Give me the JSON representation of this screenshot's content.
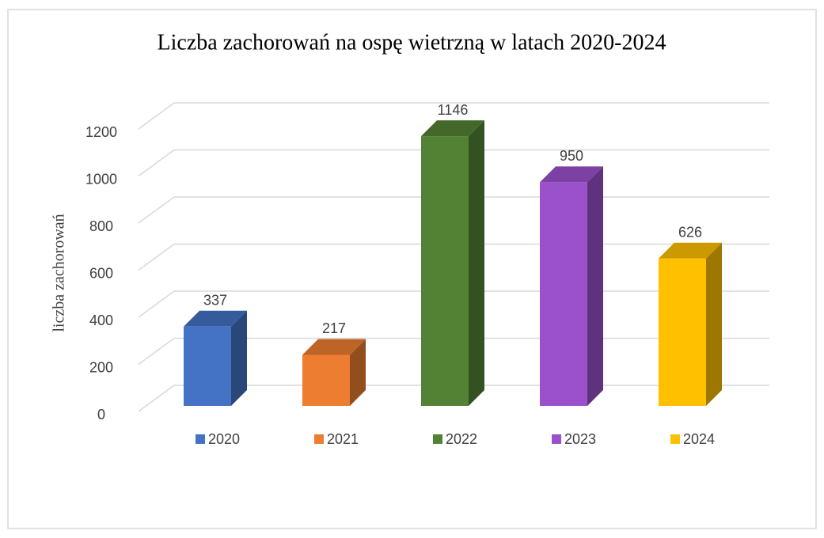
{
  "chart_data": {
    "type": "bar3d",
    "title": "Liczba zachorowań na ospę wietrzną w latach 2020-2024",
    "y_label": "liczba zachorowań",
    "series": [
      {
        "name": "2020",
        "color": "#4472c4",
        "values": [
          337
        ]
      },
      {
        "name": "2021",
        "color": "#ed7d31",
        "values": [
          217
        ]
      },
      {
        "name": "2022",
        "color": "#548235",
        "values": [
          1146
        ]
      },
      {
        "name": "2023",
        "color": "#9b51cc",
        "values": [
          950
        ]
      },
      {
        "name": "2024",
        "color": "#ffc000",
        "values": [
          626
        ]
      }
    ],
    "ylim": [
      0,
      1200
    ],
    "yticks": [
      0,
      200,
      400,
      600,
      800,
      1000,
      1200
    ],
    "grid": true,
    "legend": "bottom"
  }
}
